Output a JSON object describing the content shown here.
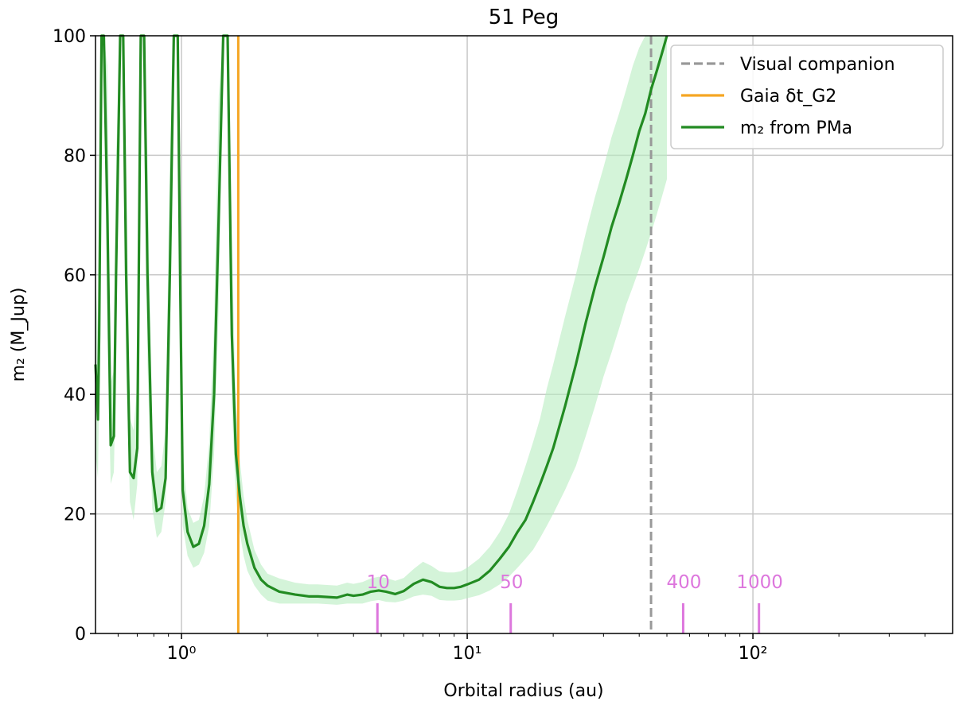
{
  "chart_data": {
    "type": "line",
    "title": "51 Peg",
    "xlabel": "Orbital radius (au)",
    "ylabel": "m₂ (M_Jup)",
    "xscale": "log",
    "xlim": [
      0.5,
      500
    ],
    "ylim": [
      0,
      100
    ],
    "x_ticks": [
      {
        "value": 1,
        "label": "10⁰"
      },
      {
        "value": 10,
        "label": "10¹"
      },
      {
        "value": 100,
        "label": "10²"
      }
    ],
    "y_ticks": [
      0,
      20,
      40,
      60,
      80,
      100
    ],
    "grid": true,
    "legend": {
      "placement": "top-right",
      "entries": [
        {
          "label": "Visual companion",
          "style": "dashed",
          "color": "#999999"
        },
        {
          "label": "Gaia δt_G2",
          "style": "solid",
          "color": "#f5a623"
        },
        {
          "label": "m₂ from PMa",
          "style": "solid",
          "color": "#228b22"
        }
      ]
    },
    "series": [
      {
        "name": "m₂ from PMa",
        "color": "#228b22",
        "x": [
          0.5,
          0.51,
          0.515,
          0.525,
          0.535,
          0.55,
          0.565,
          0.58,
          0.59,
          0.61,
          0.625,
          0.64,
          0.66,
          0.68,
          0.7,
          0.72,
          0.74,
          0.76,
          0.79,
          0.82,
          0.85,
          0.88,
          0.91,
          0.94,
          0.97,
          0.99,
          1.01,
          1.05,
          1.1,
          1.15,
          1.2,
          1.25,
          1.3,
          1.35,
          1.4,
          1.45,
          1.5,
          1.55,
          1.6,
          1.65,
          1.7,
          1.8,
          1.9,
          2.0,
          2.2,
          2.5,
          2.8,
          3.0,
          3.5,
          3.8,
          4.0,
          4.3,
          4.6,
          4.9,
          5.2,
          5.6,
          6.0,
          6.5,
          7.0,
          7.5,
          8.0,
          8.5,
          9.0,
          9.5,
          10.0,
          11,
          12,
          13,
          14,
          15,
          16,
          17,
          18,
          19,
          20,
          22,
          24,
          26,
          28,
          30,
          32,
          34,
          36,
          38,
          40,
          42,
          44,
          46,
          48,
          50
        ],
        "values": [
          45,
          35.8,
          50,
          100,
          100,
          70,
          31.5,
          33,
          60,
          100,
          100,
          60,
          27,
          26,
          31,
          100,
          100,
          60,
          27,
          20.5,
          21,
          26,
          60,
          100,
          100,
          58,
          24,
          17,
          14.5,
          15,
          18,
          25,
          40,
          70,
          100,
          100,
          50,
          30,
          23,
          18,
          15,
          11,
          9,
          8,
          7,
          6.5,
          6.2,
          6.2,
          6,
          6.5,
          6.3,
          6.5,
          7,
          7.2,
          7,
          6.6,
          7.1,
          8.3,
          9.0,
          8.6,
          7.8,
          7.6,
          7.6,
          7.8,
          8.2,
          9.0,
          10.5,
          12.5,
          14.5,
          17,
          19,
          22,
          25,
          28,
          31,
          38,
          45,
          52,
          58,
          63,
          68,
          72,
          76,
          80,
          84,
          87,
          91,
          94,
          97,
          100
        ],
        "lower": [
          30,
          26,
          40,
          100,
          100,
          50,
          25,
          27,
          45,
          100,
          100,
          45,
          22,
          19,
          25,
          100,
          100,
          45,
          21,
          16,
          17,
          22,
          45,
          100,
          100,
          45,
          18,
          13,
          11,
          11.5,
          13.5,
          18,
          30,
          55,
          100,
          100,
          38,
          23,
          17,
          13,
          10.5,
          8,
          6.5,
          5.5,
          5,
          5,
          5,
          5,
          4.8,
          5,
          5,
          5,
          5.4,
          5.6,
          5.3,
          5.2,
          5.5,
          6.2,
          6.5,
          6.3,
          5.6,
          5.5,
          5.5,
          5.6,
          5.9,
          6.4,
          7.2,
          8.2,
          9.5,
          11,
          12.5,
          14,
          16,
          18,
          20,
          24,
          28,
          33,
          38,
          43,
          47,
          51,
          55,
          58,
          61,
          64,
          67,
          70,
          73,
          76
        ],
        "upper": [
          60,
          50,
          70,
          100,
          100,
          95,
          42,
          44,
          80,
          100,
          100,
          80,
          36,
          34,
          42,
          100,
          100,
          80,
          34,
          27,
          28,
          34,
          80,
          100,
          100,
          76,
          30,
          21,
          18.5,
          19,
          23,
          32,
          52,
          90,
          100,
          100,
          65,
          38,
          29,
          23,
          19,
          14,
          11.5,
          10,
          9.2,
          8.5,
          8.2,
          8.2,
          8,
          8.5,
          8.3,
          8.6,
          9.2,
          9.5,
          9.3,
          8.8,
          9.3,
          10.8,
          12.0,
          11.3,
          10.4,
          10.2,
          10.2,
          10.4,
          11.0,
          12.5,
          14.5,
          17,
          20,
          24,
          28,
          32,
          36,
          41,
          45,
          53,
          60,
          67,
          73,
          78,
          83,
          87,
          91,
          95,
          98,
          100,
          100,
          100,
          100,
          100
        ]
      }
    ],
    "vertical_lines": [
      {
        "name": "Gaia δt_G2",
        "x": 1.58,
        "color": "#f5a623",
        "style": "solid"
      },
      {
        "name": "Visual companion",
        "x": 44,
        "color": "#999999",
        "style": "dashed"
      }
    ],
    "period_markers": {
      "color": "#dd77dd",
      "items": [
        {
          "label": "10",
          "x": 4.85
        },
        {
          "label": "50",
          "x": 14.2
        },
        {
          "label": "400",
          "x": 57
        },
        {
          "label": "1000",
          "x": 105
        }
      ]
    }
  }
}
